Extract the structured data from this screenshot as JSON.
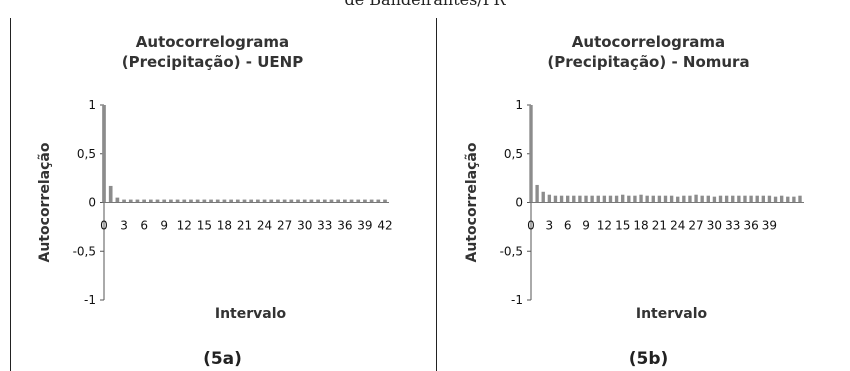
{
  "header": {
    "caption": "de Bandeirantes/PR"
  },
  "chart_data": [
    {
      "type": "bar",
      "title": "Autocorrelograma (Precipitação) - UENP",
      "xlabel": "Intervalo",
      "ylabel": "Autocorrelação",
      "ylim": [
        -1,
        1
      ],
      "yticks": [
        "1",
        "0,5",
        "0",
        "-0,5",
        "-1"
      ],
      "xticks": [
        "0",
        "3",
        "6",
        "9",
        "12",
        "15",
        "18",
        "21",
        "24",
        "27",
        "30",
        "33",
        "36",
        "39",
        "42"
      ],
      "figure_label": "(5a)",
      "x": [
        0,
        1,
        2,
        3,
        4,
        5,
        6,
        7,
        8,
        9,
        10,
        11,
        12,
        13,
        14,
        15,
        16,
        17,
        18,
        19,
        20,
        21,
        22,
        23,
        24,
        25,
        26,
        27,
        28,
        29,
        30,
        31,
        32,
        33,
        34,
        35,
        36,
        37,
        38,
        39,
        40,
        41,
        42
      ],
      "values": [
        1,
        0.17,
        0.05,
        0.03,
        0.03,
        0.03,
        0.03,
        0.03,
        0.03,
        0.03,
        0.03,
        0.03,
        0.03,
        0.03,
        0.03,
        0.03,
        0.03,
        0.03,
        0.03,
        0.03,
        0.03,
        0.03,
        0.03,
        0.03,
        0.03,
        0.03,
        0.03,
        0.03,
        0.03,
        0.03,
        0.03,
        0.03,
        0.03,
        0.03,
        0.03,
        0.03,
        0.03,
        0.03,
        0.03,
        0.03,
        0.03,
        0.03,
        0.03
      ]
    },
    {
      "type": "bar",
      "title": "Autocorrelograma (Precipitação) - Nomura",
      "xlabel": "Intervalo",
      "ylabel": "Autocorrelação",
      "ylim": [
        -1,
        1
      ],
      "yticks": [
        "1",
        "0,5",
        "0",
        "-0,5",
        "-1"
      ],
      "xticks": [
        "0",
        "3",
        "6",
        "9",
        "12",
        "15",
        "18",
        "21",
        "24",
        "27",
        "30",
        "33",
        "36",
        "39"
      ],
      "figure_label": "(5b)",
      "x": [
        0,
        1,
        2,
        3,
        4,
        5,
        6,
        7,
        8,
        9,
        10,
        11,
        12,
        13,
        14,
        15,
        16,
        17,
        18,
        19,
        20,
        21,
        22,
        23,
        24,
        25,
        26,
        27,
        28,
        29,
        30,
        31,
        32,
        33,
        34,
        35,
        36,
        37,
        38,
        39,
        40,
        41,
        42,
        43,
        44
      ],
      "values": [
        1,
        0.18,
        0.11,
        0.08,
        0.07,
        0.07,
        0.07,
        0.07,
        0.07,
        0.07,
        0.07,
        0.07,
        0.07,
        0.07,
        0.07,
        0.08,
        0.07,
        0.07,
        0.08,
        0.07,
        0.07,
        0.07,
        0.07,
        0.07,
        0.06,
        0.07,
        0.07,
        0.08,
        0.07,
        0.07,
        0.06,
        0.07,
        0.07,
        0.07,
        0.07,
        0.07,
        0.07,
        0.07,
        0.07,
        0.07,
        0.06,
        0.07,
        0.06,
        0.06,
        0.07
      ]
    }
  ]
}
